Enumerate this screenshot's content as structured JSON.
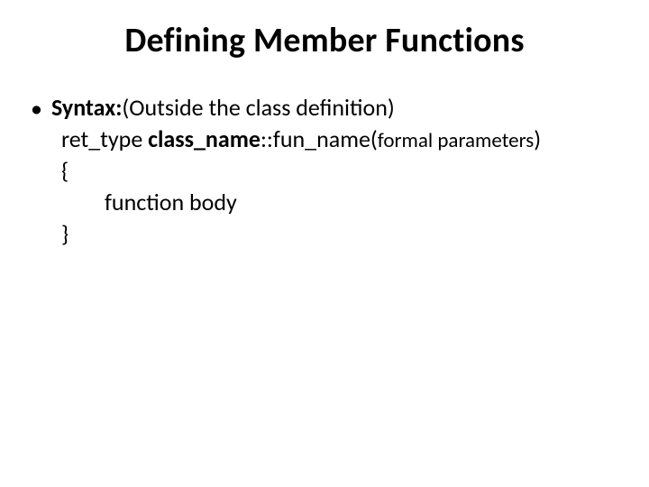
{
  "title": "Defining Member Functions",
  "bullet_glyph": "•",
  "syntax_label_bold": "Syntax:",
  "syntax_label_rest": "(Outside the class definition)",
  "line2_part1": "ret_type ",
  "line2_bold": "class_name",
  "line2_part3": "::fun_name(",
  "line2_small": "formal parameters",
  "line2_part5": ")",
  "line3": "{",
  "line4": "function body",
  "line5": "}",
  "colors": {
    "text": "#000000",
    "background": "#ffffff"
  },
  "fontsizes": {
    "title": 38,
    "body": 26,
    "small": 23
  }
}
